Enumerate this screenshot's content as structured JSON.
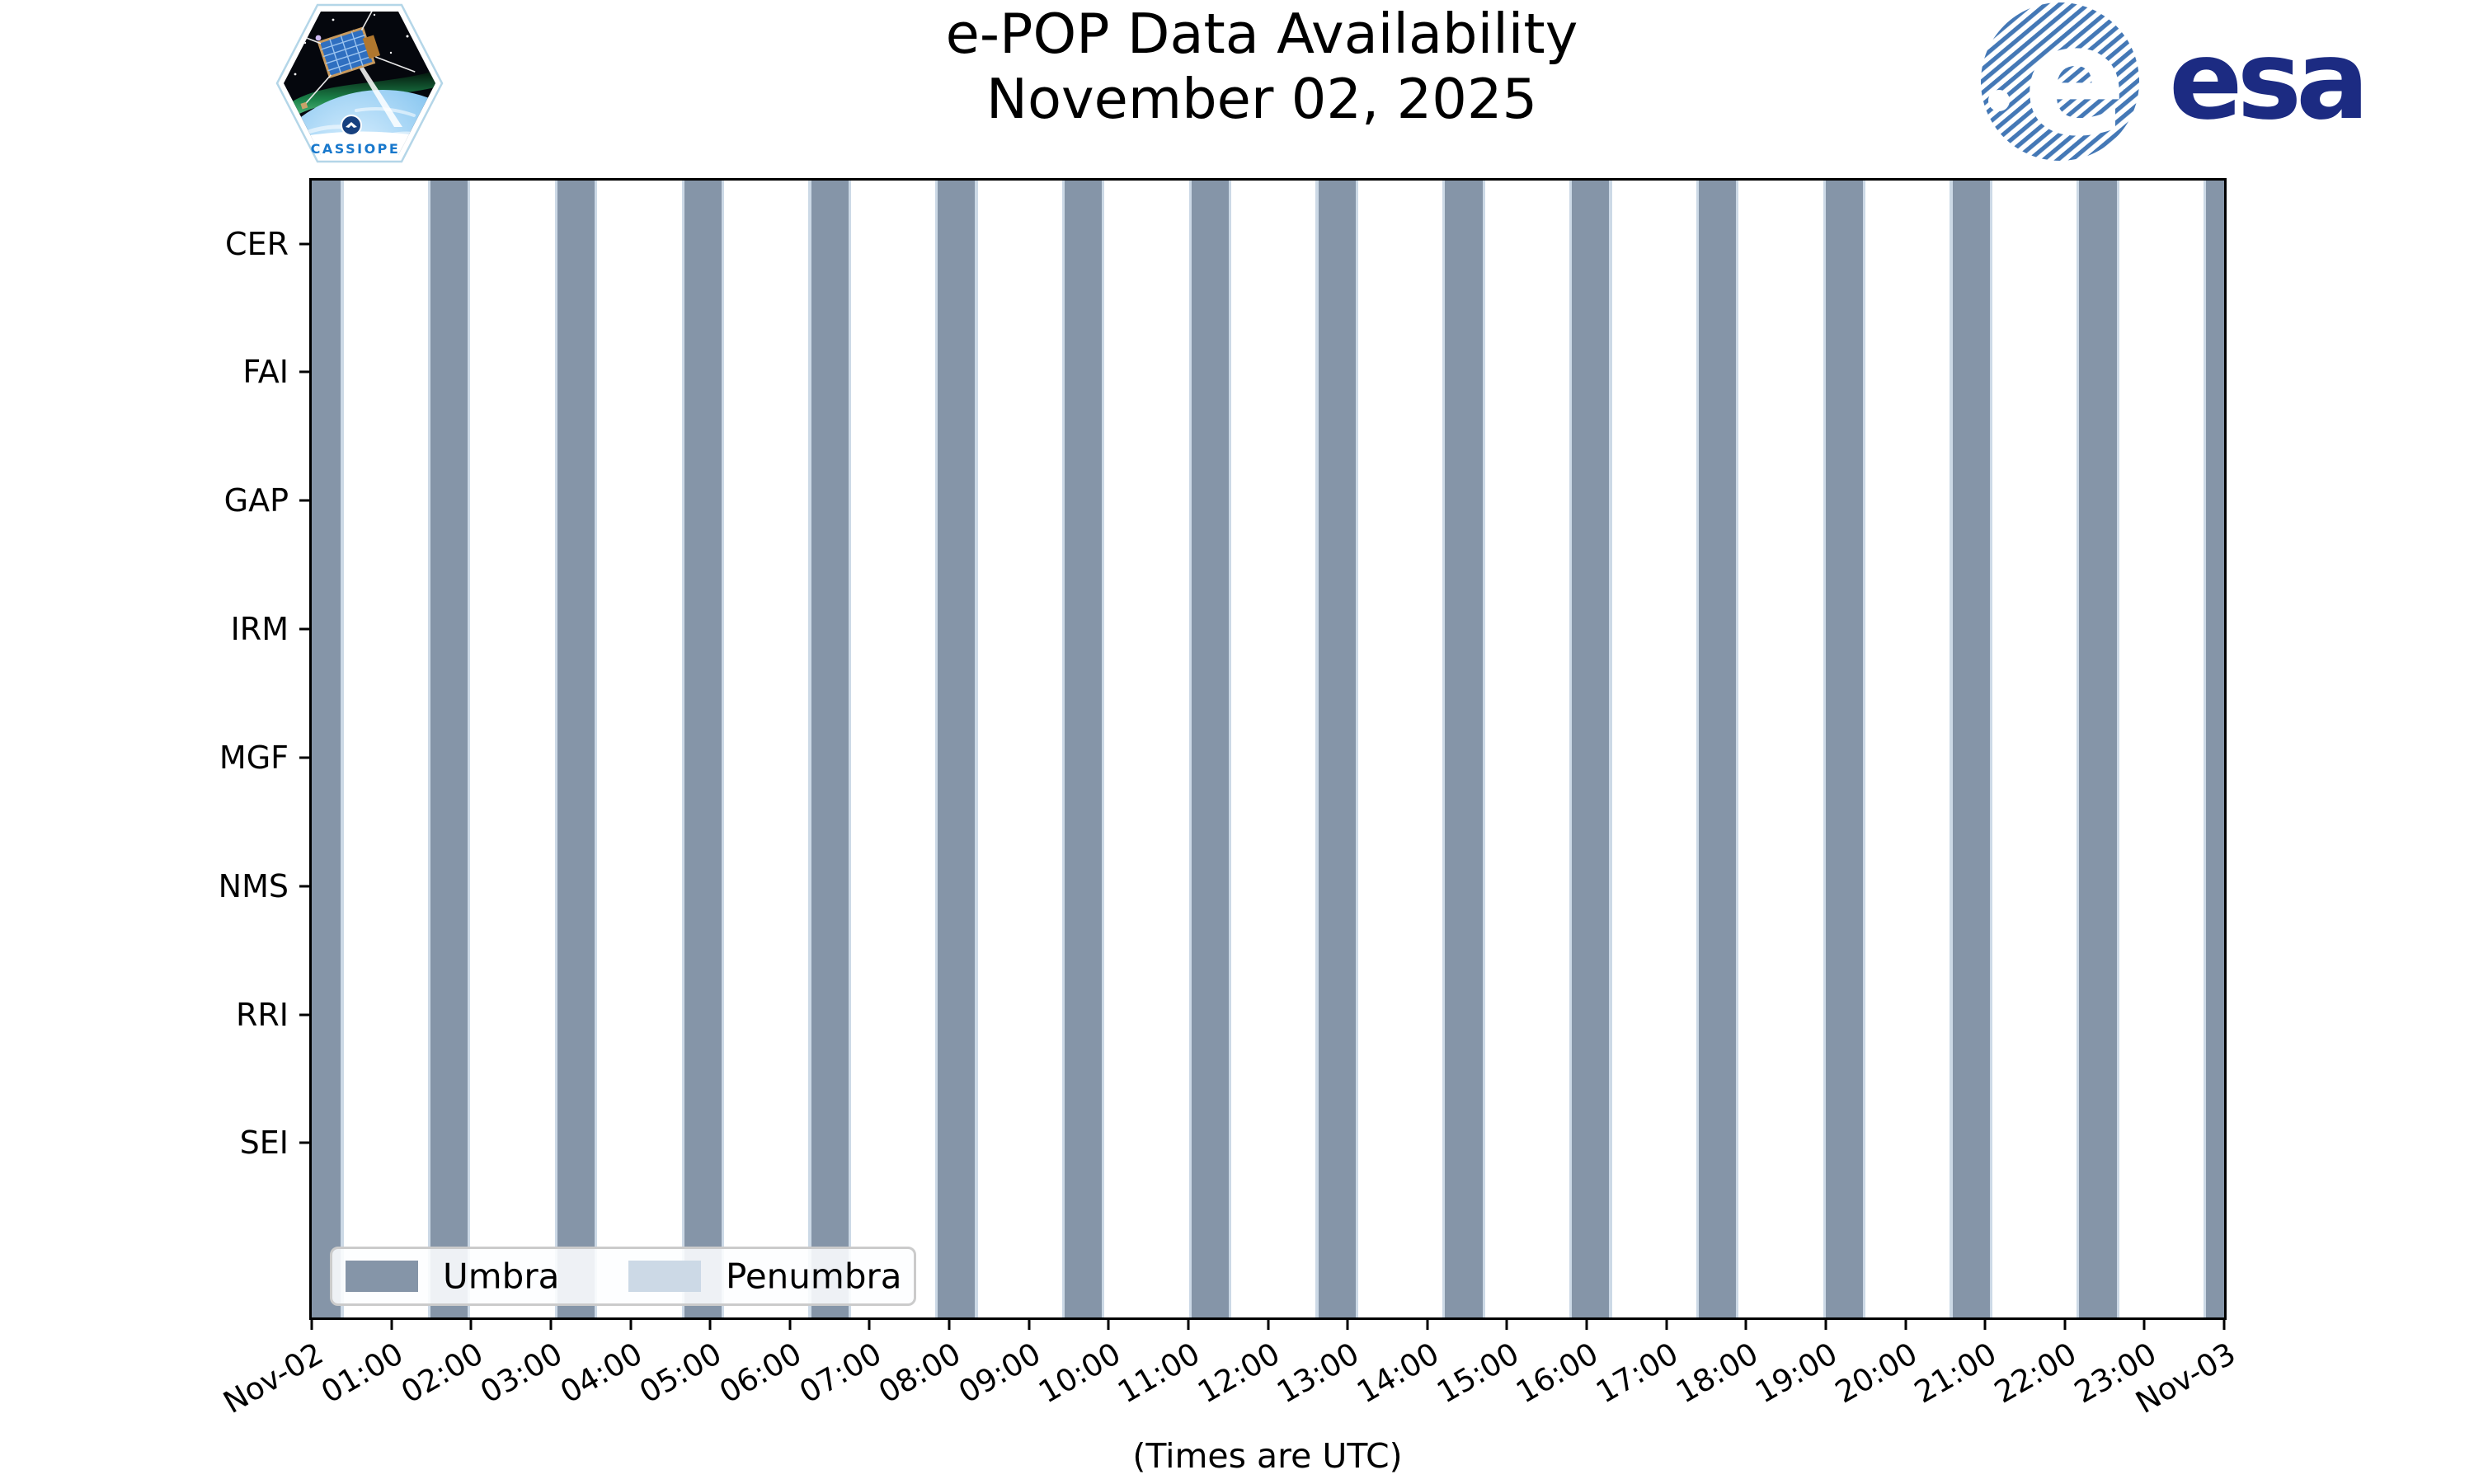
{
  "branding": {
    "cassiope_label": "CASSIOPE",
    "cassiope_blue": "#1878cc",
    "esa_label": "esa",
    "esa_navy": "#1c2b82",
    "esa_globe_blue": "#4478b6"
  },
  "chart_data": {
    "type": "timeline-availability",
    "title": "e-POP Data Availability",
    "subtitle": "November 02, 2025",
    "xlabel": "(Times are UTC)",
    "x_axis": {
      "total_minutes": 1440,
      "hours": 24,
      "tick_labels": [
        "Nov-02",
        "01:00",
        "02:00",
        "03:00",
        "04:00",
        "05:00",
        "06:00",
        "07:00",
        "08:00",
        "09:00",
        "10:00",
        "11:00",
        "12:00",
        "13:00",
        "14:00",
        "15:00",
        "16:00",
        "17:00",
        "18:00",
        "19:00",
        "20:00",
        "21:00",
        "22:00",
        "23:00",
        "Nov-03"
      ]
    },
    "y_categories": [
      "CER",
      "FAI",
      "GAP",
      "IRM",
      "MGF",
      "NMS",
      "RRI",
      "SEI"
    ],
    "legend": {
      "position": "lower-left",
      "entries": [
        {
          "label": "Umbra",
          "color": "#8595a8"
        },
        {
          "label": "Penumbra",
          "color": "#ccd9e6"
        }
      ]
    },
    "umbra_intervals_min": [
      [
        0,
        22
      ],
      [
        89.5,
        117.5
      ],
      [
        185,
        213
      ],
      [
        280.5,
        308.5
      ],
      [
        376,
        404
      ],
      [
        471.5,
        499.5
      ],
      [
        567,
        595
      ],
      [
        662.5,
        690.5
      ],
      [
        758,
        786
      ],
      [
        853.5,
        881.5
      ],
      [
        949,
        977
      ],
      [
        1044.5,
        1072.5
      ],
      [
        1140,
        1168
      ],
      [
        1235.5,
        1263.5
      ],
      [
        1331,
        1359
      ],
      [
        1426.5,
        1440
      ]
    ],
    "penumbra_pad_min": 2
  }
}
